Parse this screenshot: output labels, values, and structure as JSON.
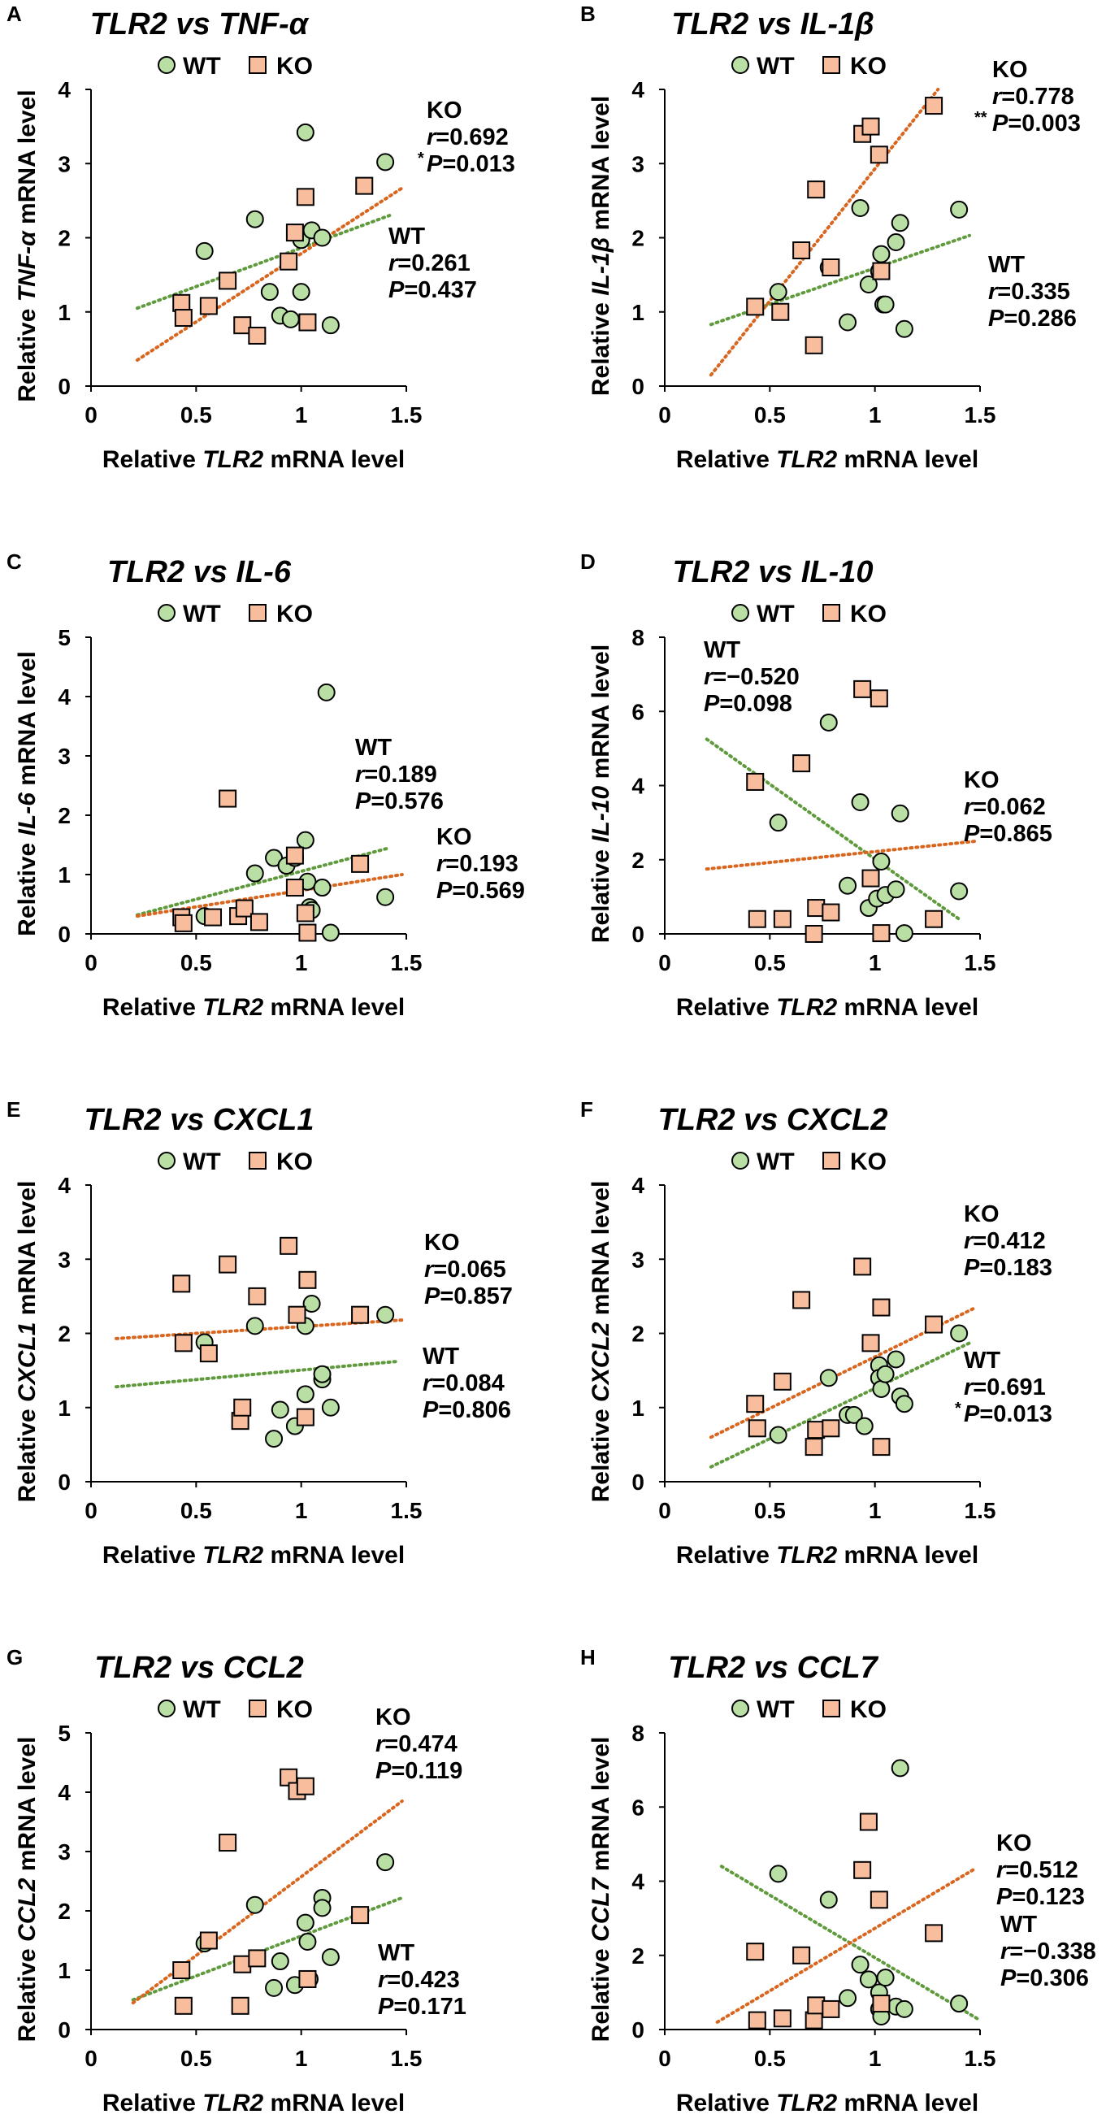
{
  "colors": {
    "wt_fill": "#b9dfa5",
    "ko_fill": "#f7bd9c",
    "wt_line": "#5f9a3c",
    "ko_line": "#d9661f",
    "marker_stroke": "#000000",
    "axis": "#000000"
  },
  "legend": {
    "wt": "WT",
    "ko": "KO"
  },
  "x_axis": {
    "label_prefix": "Relative ",
    "label_gene": "TLR2",
    "label_suffix": " mRNA level",
    "ticks": [
      "0",
      "0.5",
      "1",
      "1.5"
    ]
  },
  "chart_data": [
    {
      "type": "scatter",
      "panel": "A",
      "title": "TLR2 vs TNF-α",
      "gene": "TNF-α",
      "xlim": [
        0,
        1.5
      ],
      "ylim": [
        0,
        4
      ],
      "yticks": [
        "0",
        "1",
        "2",
        "3",
        "4"
      ],
      "ylabel_prefix": "Relative ",
      "ylabel_suffix": " mRNA level",
      "series": {
        "wt": {
          "name": "WT",
          "x": [
            0.54,
            0.78,
            0.85,
            0.9,
            0.95,
            1.0,
            1.0,
            1.02,
            1.05,
            1.1,
            1.14,
            1.4
          ],
          "y": [
            1.82,
            2.25,
            1.27,
            0.95,
            0.9,
            1.97,
            1.27,
            3.42,
            2.1,
            2.0,
            0.82,
            3.02
          ],
          "fit": {
            "x": [
              0.22,
              1.42
            ],
            "y": [
              1.05,
              2.3
            ]
          },
          "stats": {
            "label": "WT",
            "r": "0.261",
            "p": "0.437",
            "sig": ""
          }
        },
        "ko": {
          "name": "KO",
          "x": [
            0.43,
            0.44,
            0.56,
            0.65,
            0.72,
            0.79,
            0.94,
            0.97,
            1.02,
            1.03,
            1.3
          ],
          "y": [
            1.12,
            0.92,
            1.08,
            1.42,
            0.82,
            0.68,
            1.68,
            2.07,
            2.55,
            0.86,
            2.7
          ],
          "fit": {
            "x": [
              0.22,
              1.48
            ],
            "y": [
              0.35,
              2.67
            ]
          },
          "stats": {
            "label": "KO",
            "r": "0.692",
            "p": "0.013",
            "sig": "*"
          }
        }
      }
    },
    {
      "type": "scatter",
      "panel": "B",
      "title": "TLR2 vs IL-1β",
      "gene": "IL-1β",
      "xlim": [
        0,
        1.5
      ],
      "ylim": [
        0,
        4
      ],
      "yticks": [
        "0",
        "1",
        "2",
        "3",
        "4"
      ],
      "ylabel_prefix": "Relative ",
      "ylabel_suffix": " mRNA level",
      "series": {
        "wt": {
          "name": "WT",
          "x": [
            0.54,
            0.78,
            0.87,
            0.93,
            0.97,
            1.02,
            1.03,
            1.04,
            1.05,
            1.1,
            1.12,
            1.14,
            1.4
          ],
          "y": [
            1.27,
            1.6,
            0.86,
            2.4,
            1.37,
            1.55,
            1.78,
            1.1,
            1.1,
            1.94,
            2.2,
            0.77,
            2.38
          ],
          "fit": {
            "x": [
              0.22,
              1.45
            ],
            "y": [
              0.83,
              2.03
            ]
          },
          "stats": {
            "label": "WT",
            "r": "0.335",
            "p": "0.286",
            "sig": ""
          }
        },
        "ko": {
          "name": "KO",
          "x": [
            0.43,
            0.55,
            0.65,
            0.71,
            0.72,
            0.79,
            0.94,
            0.98,
            1.02,
            1.03,
            1.28
          ],
          "y": [
            1.07,
            1.0,
            1.83,
            0.55,
            2.65,
            1.6,
            3.4,
            3.5,
            3.12,
            1.55,
            3.78
          ],
          "fit": {
            "x": [
              0.22,
              1.3
            ],
            "y": [
              0.15,
              4.0
            ]
          },
          "stats": {
            "label": "KO",
            "r": "0.778",
            "p": "0.003",
            "sig": "**"
          }
        }
      }
    },
    {
      "type": "scatter",
      "panel": "C",
      "title": "TLR2 vs IL-6",
      "gene": "IL-6",
      "xlim": [
        0,
        1.5
      ],
      "ylim": [
        0,
        5
      ],
      "yticks": [
        "0",
        "1",
        "2",
        "3",
        "4",
        "5"
      ],
      "ylabel_prefix": "Relative ",
      "ylabel_suffix": " mRNA level",
      "series": {
        "wt": {
          "name": "WT",
          "x": [
            0.54,
            0.78,
            0.87,
            0.93,
            0.97,
            1.02,
            1.03,
            1.04,
            1.05,
            1.1,
            1.12,
            1.14,
            1.4
          ],
          "y": [
            0.3,
            1.02,
            1.28,
            1.15,
            1.28,
            1.58,
            0.88,
            0.45,
            0.4,
            0.78,
            4.07,
            0.02,
            0.62
          ],
          "fit": {
            "x": [
              0.22,
              1.42
            ],
            "y": [
              0.32,
              1.45
            ]
          },
          "stats": {
            "label": "WT",
            "r": "0.189",
            "p": "0.576",
            "sig": ""
          }
        },
        "ko": {
          "name": "KO",
          "x": [
            0.43,
            0.44,
            0.58,
            0.65,
            0.7,
            0.73,
            0.8,
            0.97,
            0.97,
            1.02,
            1.03,
            1.28
          ],
          "y": [
            0.28,
            0.18,
            0.28,
            2.28,
            0.3,
            0.43,
            0.2,
            0.78,
            1.32,
            0.35,
            0.02,
            1.18
          ],
          "fit": {
            "x": [
              0.22,
              1.48
            ],
            "y": [
              0.3,
              1.0
            ]
          },
          "stats": {
            "label": "KO",
            "r": "0.193",
            "p": "0.569",
            "sig": ""
          }
        }
      }
    },
    {
      "type": "scatter",
      "panel": "D",
      "title": "TLR2 vs IL-10",
      "gene": "IL-10",
      "xlim": [
        0,
        1.5
      ],
      "ylim": [
        0,
        8
      ],
      "yticks": [
        "0",
        "2",
        "4",
        "6",
        "8"
      ],
      "ylabel_prefix": "Relative ",
      "ylabel_suffix": " mRNA level",
      "series": {
        "wt": {
          "name": "WT",
          "x": [
            0.54,
            0.78,
            0.87,
            0.93,
            0.97,
            1.01,
            1.03,
            1.05,
            1.1,
            1.12,
            1.14,
            1.4
          ],
          "y": [
            3.0,
            5.7,
            1.3,
            3.55,
            0.7,
            0.95,
            1.95,
            1.05,
            1.2,
            3.25,
            0.02,
            1.15
          ],
          "fit": {
            "x": [
              0.2,
              1.4
            ],
            "y": [
              5.25,
              0.4
            ]
          },
          "stats": {
            "label": "WT",
            "r": "−0.520",
            "p": "0.098",
            "sig": ""
          }
        },
        "ko": {
          "name": "KO",
          "x": [
            0.43,
            0.44,
            0.56,
            0.65,
            0.71,
            0.72,
            0.79,
            0.94,
            0.98,
            1.02,
            1.03,
            1.28
          ],
          "y": [
            4.1,
            0.4,
            0.4,
            4.6,
            0.0,
            0.7,
            0.58,
            6.6,
            1.5,
            6.35,
            0.02,
            0.4
          ],
          "fit": {
            "x": [
              0.2,
              1.48
            ],
            "y": [
              1.75,
              2.5
            ]
          },
          "stats": {
            "label": "KO",
            "r": "0.062",
            "p": "0.865",
            "sig": ""
          }
        }
      }
    },
    {
      "type": "scatter",
      "panel": "E",
      "title": "TLR2 vs CXCL1",
      "gene": "CXCL1",
      "xlim": [
        0,
        1.5
      ],
      "ylim": [
        0,
        4
      ],
      "yticks": [
        "0",
        "1",
        "2",
        "3",
        "4"
      ],
      "ylabel_prefix": "Relative ",
      "ylabel_suffix": " mRNA level",
      "series": {
        "wt": {
          "name": "WT",
          "x": [
            0.54,
            0.78,
            0.87,
            0.9,
            0.97,
            1.02,
            1.02,
            1.05,
            1.1,
            1.1,
            1.14,
            1.4
          ],
          "y": [
            1.88,
            2.1,
            0.58,
            0.97,
            0.75,
            1.18,
            2.1,
            2.4,
            1.38,
            1.45,
            1.0,
            2.25
          ],
          "fit": {
            "x": [
              0.12,
              1.45
            ],
            "y": [
              1.28,
              1.62
            ]
          },
          "stats": {
            "label": "WT",
            "r": "0.084",
            "p": "0.806",
            "sig": ""
          }
        },
        "ko": {
          "name": "KO",
          "x": [
            0.43,
            0.44,
            0.56,
            0.65,
            0.71,
            0.72,
            0.79,
            0.94,
            0.98,
            1.02,
            1.03,
            1.28
          ],
          "y": [
            2.67,
            1.87,
            1.73,
            2.93,
            0.82,
            1.0,
            2.5,
            3.18,
            2.25,
            0.87,
            2.72,
            2.25
          ],
          "fit": {
            "x": [
              0.12,
              1.48
            ],
            "y": [
              1.93,
              2.18
            ]
          },
          "stats": {
            "label": "KO",
            "r": "0.065",
            "p": "0.857",
            "sig": ""
          }
        }
      }
    },
    {
      "type": "scatter",
      "panel": "F",
      "title": "TLR2 vs CXCL2",
      "gene": "CXCL2",
      "xlim": [
        0,
        1.5
      ],
      "ylim": [
        0,
        4
      ],
      "yticks": [
        "0",
        "1",
        "2",
        "3",
        "4"
      ],
      "ylabel_prefix": "Relative ",
      "ylabel_suffix": " mRNA level",
      "series": {
        "wt": {
          "name": "WT",
          "x": [
            0.54,
            0.78,
            0.87,
            0.9,
            0.95,
            1.02,
            1.02,
            1.03,
            1.05,
            1.1,
            1.12,
            1.14,
            1.4
          ],
          "y": [
            0.63,
            1.4,
            0.9,
            0.9,
            0.75,
            1.57,
            1.4,
            1.25,
            1.45,
            1.65,
            1.15,
            1.05,
            2.0
          ],
          "fit": {
            "x": [
              0.22,
              1.45
            ],
            "y": [
              0.2,
              1.87
            ]
          },
          "stats": {
            "label": "WT",
            "r": "0.691",
            "p": "0.013",
            "sig": "*"
          }
        },
        "ko": {
          "name": "KO",
          "x": [
            0.43,
            0.44,
            0.56,
            0.65,
            0.71,
            0.72,
            0.79,
            0.94,
            0.98,
            1.03,
            1.03,
            1.28
          ],
          "y": [
            1.05,
            0.72,
            1.35,
            2.45,
            0.47,
            0.7,
            0.72,
            2.9,
            1.87,
            2.35,
            0.47,
            2.12
          ],
          "fit": {
            "x": [
              0.22,
              1.48
            ],
            "y": [
              0.6,
              2.35
            ]
          },
          "stats": {
            "label": "KO",
            "r": "0.412",
            "p": "0.183",
            "sig": ""
          }
        }
      }
    },
    {
      "type": "scatter",
      "panel": "G",
      "title": "TLR2 vs CCL2",
      "gene": "CCL2",
      "xlim": [
        0,
        1.5
      ],
      "ylim": [
        0,
        5
      ],
      "yticks": [
        "0",
        "1",
        "2",
        "3",
        "4",
        "5"
      ],
      "ylabel_prefix": "Relative ",
      "ylabel_suffix": " mRNA level",
      "series": {
        "wt": {
          "name": "WT",
          "x": [
            0.54,
            0.78,
            0.87,
            0.9,
            0.97,
            1.02,
            1.03,
            1.04,
            1.1,
            1.1,
            1.14,
            1.4
          ],
          "y": [
            1.45,
            2.1,
            0.7,
            1.15,
            0.75,
            1.8,
            1.48,
            0.85,
            2.22,
            2.05,
            1.22,
            2.82
          ],
          "fit": {
            "x": [
              0.2,
              1.48
            ],
            "y": [
              0.5,
              2.22
            ]
          },
          "stats": {
            "label": "WT",
            "r": "0.423",
            "p": "0.171",
            "sig": ""
          }
        },
        "ko": {
          "name": "KO",
          "x": [
            0.43,
            0.44,
            0.56,
            0.65,
            0.71,
            0.72,
            0.79,
            0.94,
            0.98,
            1.02,
            1.03,
            1.28
          ],
          "y": [
            1.0,
            0.4,
            1.5,
            3.15,
            0.4,
            1.1,
            1.2,
            4.25,
            4.02,
            4.1,
            0.85,
            1.93
          ],
          "fit": {
            "x": [
              0.2,
              1.48
            ],
            "y": [
              0.45,
              3.85
            ]
          },
          "stats": {
            "label": "KO",
            "r": "0.474",
            "p": "0.119",
            "sig": ""
          }
        }
      }
    },
    {
      "type": "scatter",
      "panel": "H",
      "title": "TLR2 vs CCL7",
      "gene": "CCL7",
      "xlim": [
        0,
        1.5
      ],
      "ylim": [
        0,
        8
      ],
      "yticks": [
        "0",
        "2",
        "4",
        "6",
        "8"
      ],
      "ylabel_prefix": "Relative ",
      "ylabel_suffix": " mRNA level",
      "series": {
        "wt": {
          "name": "WT",
          "x": [
            0.54,
            0.78,
            0.87,
            0.93,
            0.97,
            1.02,
            1.02,
            1.03,
            1.05,
            1.1,
            1.12,
            1.14,
            1.4
          ],
          "y": [
            4.2,
            3.5,
            0.85,
            1.75,
            1.35,
            1.0,
            0.55,
            0.35,
            1.4,
            0.62,
            7.05,
            0.55,
            0.7
          ],
          "fit": {
            "x": [
              0.27,
              1.5
            ],
            "y": [
              4.4,
              0.25
            ]
          },
          "stats": {
            "label": "WT",
            "r": "−0.338",
            "p": "0.306",
            "sig": ""
          }
        },
        "ko": {
          "name": "KO",
          "x": [
            0.43,
            0.44,
            0.56,
            0.65,
            0.71,
            0.72,
            0.79,
            0.94,
            0.97,
            1.02,
            1.03,
            1.28
          ],
          "y": [
            2.1,
            0.25,
            0.3,
            2.0,
            0.25,
            0.65,
            0.55,
            4.3,
            5.6,
            3.5,
            0.7,
            2.6
          ],
          "fit": {
            "x": [
              0.25,
              1.48
            ],
            "y": [
              0.2,
              4.35
            ]
          },
          "stats": {
            "label": "KO",
            "r": "0.512",
            "p": "0.123",
            "sig": ""
          }
        }
      }
    }
  ]
}
